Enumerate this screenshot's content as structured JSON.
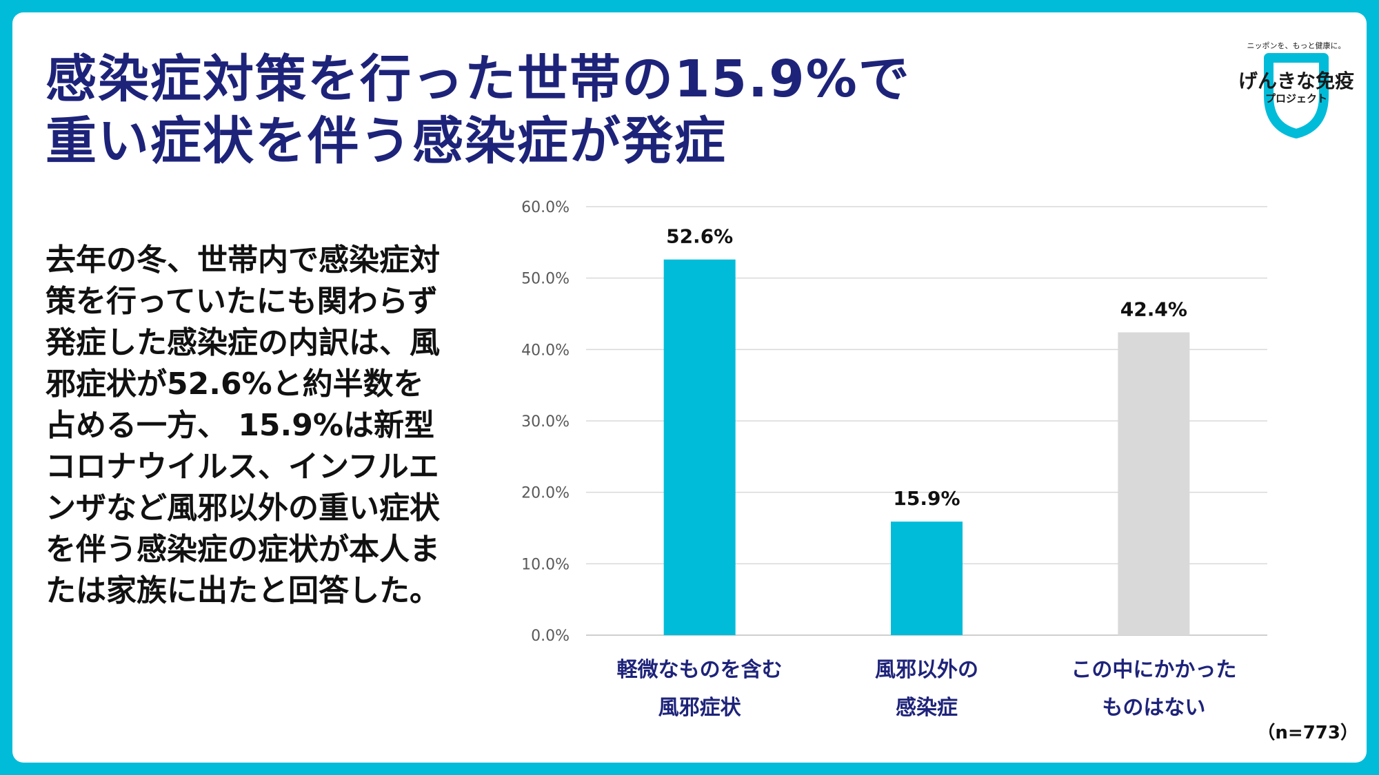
{
  "title_lines": [
    "感染症対策を行った世帯の15.9%で",
    "重い症状を伴う感染症が発症"
  ],
  "body_text": "去年の冬、世帯内で感染症対策を行っていたにも関わらず発症した感染症の内訳は、風邪症状が52.6%と約半数を占める一方、 15.9%は新型コロナウイルス、インフルエンザなど風邪以外の重い症状を伴う感染症の症状が本人または家族に出たと回答した。",
  "logo": {
    "tagline": "ニッポンを、もっと健康に。",
    "name": "げんきな免疫",
    "subname": "プロジェクト"
  },
  "sample_size": "（n=773）",
  "colors": {
    "frame": "#00BCD9",
    "title": "#1E237A",
    "bar_primary": "#00BCD9",
    "bar_secondary": "#D9D9D9"
  },
  "chart_data": {
    "type": "bar",
    "title": "",
    "xlabel": "",
    "ylabel": "",
    "ylim": [
      0,
      60
    ],
    "yticks": [
      "0.0%",
      "10.0%",
      "20.0%",
      "30.0%",
      "40.0%",
      "50.0%",
      "60.0%"
    ],
    "categories": [
      [
        "軽微なものを含む",
        "風邪症状"
      ],
      [
        "風邪以外の",
        "感染症"
      ],
      [
        "この中にかかった",
        "ものはない"
      ]
    ],
    "values": [
      52.6,
      15.9,
      42.4
    ],
    "data_labels": [
      "52.6%",
      "15.9%",
      "42.4%"
    ],
    "bar_colors": [
      "#00BCD9",
      "#00BCD9",
      "#D9D9D9"
    ],
    "grid": true
  }
}
